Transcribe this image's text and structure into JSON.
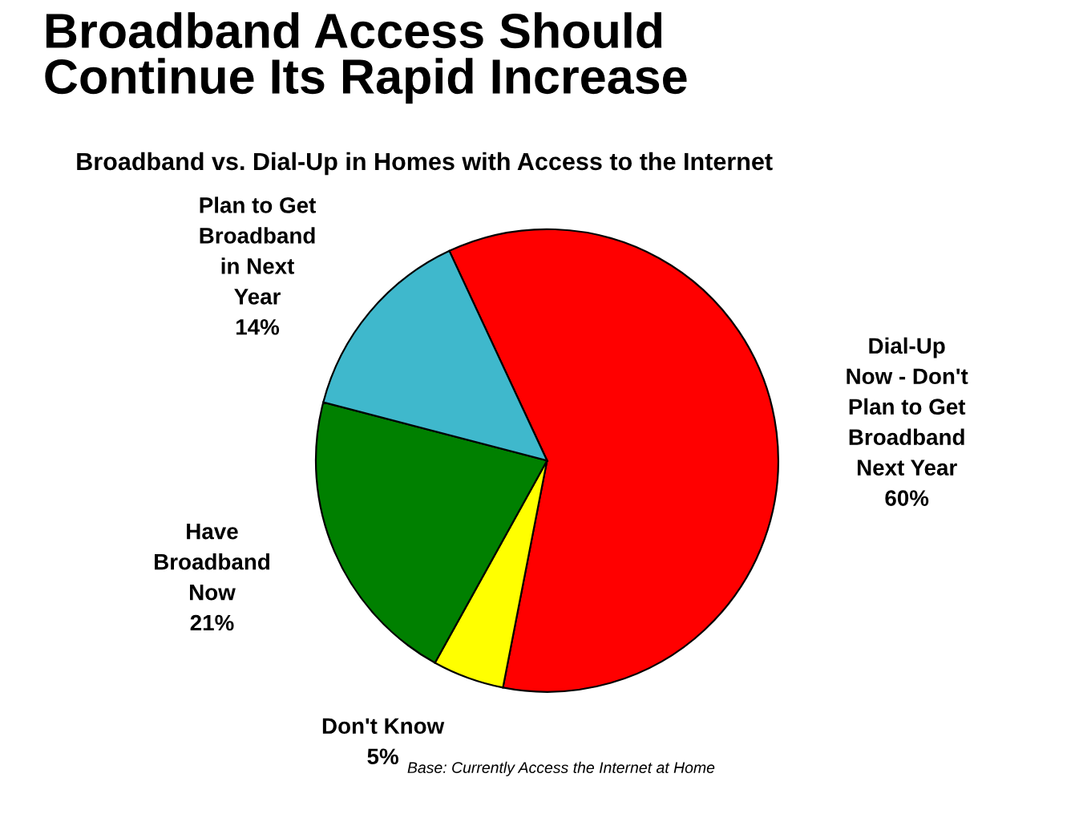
{
  "chart_data": {
    "type": "pie",
    "title": "Broadband Access Should\nContinue Its Rapid Increase",
    "subtitle": "Broadband vs. Dial-Up in Homes with Access to the Internet",
    "categories": [
      "Dial-Up\nNow - Don't\nPlan to Get\nBroadband\nNext Year",
      "Don't Know",
      "Have\nBroadband\nNow",
      "Plan to Get\nBroadband\nin Next\nYear"
    ],
    "values": [
      60,
      5,
      21,
      14
    ],
    "value_labels": [
      "60%",
      "5%",
      "21%",
      "14%"
    ],
    "colors": [
      "#ff0000",
      "#ffff00",
      "#008000",
      "#3fb8cc"
    ],
    "annotations": [
      "Base: Currently Access the Internet at Home"
    ]
  }
}
